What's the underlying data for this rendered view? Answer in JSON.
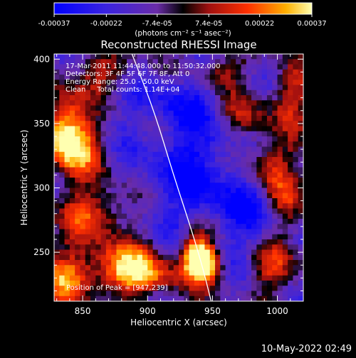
{
  "chart_data": {
    "type": "heatmap",
    "title": "Reconstructed RHESSI Image",
    "xlabel": "Heliocentric X (arcsec)",
    "ylabel": "Heliocentric Y (arcsec)",
    "xlim": [
      828,
      1020
    ],
    "ylim": [
      212,
      404
    ],
    "x_ticks": [
      850,
      900,
      950,
      1000
    ],
    "y_ticks": [
      250,
      300,
      350,
      400
    ],
    "colorbar": {
      "range": [
        -0.00037,
        0.00037
      ],
      "tick_labels": [
        "-0.00037",
        "-0.00022",
        "-7.4e-05",
        "7.4e-05",
        "0.00022",
        "0.00037"
      ],
      "unit_label": "(photons cm⁻² s⁻¹ asec⁻²)"
    },
    "annotations": [
      "17-Mar-2011 11:44:48.000 to 11:50:32.000",
      "Detectors: 3F 4F 5F 6F 7F 8F, Att 0",
      "Energy Range: 25.0 - 50.0 keV",
      "Clean     Total counts: 1.14E+04"
    ],
    "peak_label": "Position of Peak = [947,239]",
    "peak": [
      947,
      239
    ],
    "limb_curve": [
      [
        888,
        404
      ],
      [
        905,
        360
      ],
      [
        920,
        310
      ],
      [
        933,
        270
      ],
      [
        942,
        240
      ],
      [
        949,
        212
      ]
    ],
    "hot_spots": [
      {
        "x": 937,
        "y": 250,
        "amp": 1.0,
        "sx": 9,
        "sy": 12
      },
      {
        "x": 945,
        "y": 240,
        "amp": 0.9,
        "sx": 8,
        "sy": 8
      },
      {
        "x": 835,
        "y": 350,
        "amp": 0.75,
        "sx": 12,
        "sy": 18
      },
      {
        "x": 845,
        "y": 330,
        "amp": 0.6,
        "sx": 15,
        "sy": 15
      },
      {
        "x": 860,
        "y": 280,
        "amp": 0.55,
        "sx": 18,
        "sy": 15
      },
      {
        "x": 880,
        "y": 240,
        "amp": 0.7,
        "sx": 18,
        "sy": 12
      },
      {
        "x": 900,
        "y": 230,
        "amp": 0.5,
        "sx": 20,
        "sy": 10
      },
      {
        "x": 835,
        "y": 230,
        "amp": 0.55,
        "sx": 15,
        "sy": 15
      },
      {
        "x": 990,
        "y": 320,
        "amp": 0.5,
        "sx": 14,
        "sy": 14
      },
      {
        "x": 1005,
        "y": 290,
        "amp": 0.45,
        "sx": 12,
        "sy": 20
      },
      {
        "x": 975,
        "y": 355,
        "amp": 0.45,
        "sx": 14,
        "sy": 14
      },
      {
        "x": 955,
        "y": 390,
        "amp": 0.4,
        "sx": 14,
        "sy": 10
      },
      {
        "x": 995,
        "y": 240,
        "amp": 0.4,
        "sx": 12,
        "sy": 15
      },
      {
        "x": 870,
        "y": 390,
        "amp": 0.4,
        "sx": 15,
        "sy": 10
      },
      {
        "x": 1010,
        "y": 370,
        "amp": 0.45,
        "sx": 10,
        "sy": 15
      }
    ],
    "cold_regions": [
      {
        "x": 940,
        "y": 310,
        "amp": 0.7,
        "sx": 35,
        "sy": 35
      },
      {
        "x": 920,
        "y": 370,
        "amp": 0.4,
        "sx": 30,
        "sy": 20
      },
      {
        "x": 985,
        "y": 275,
        "amp": 0.4,
        "sx": 20,
        "sy": 20
      }
    ],
    "footer": "10-May-2022 02:49"
  }
}
